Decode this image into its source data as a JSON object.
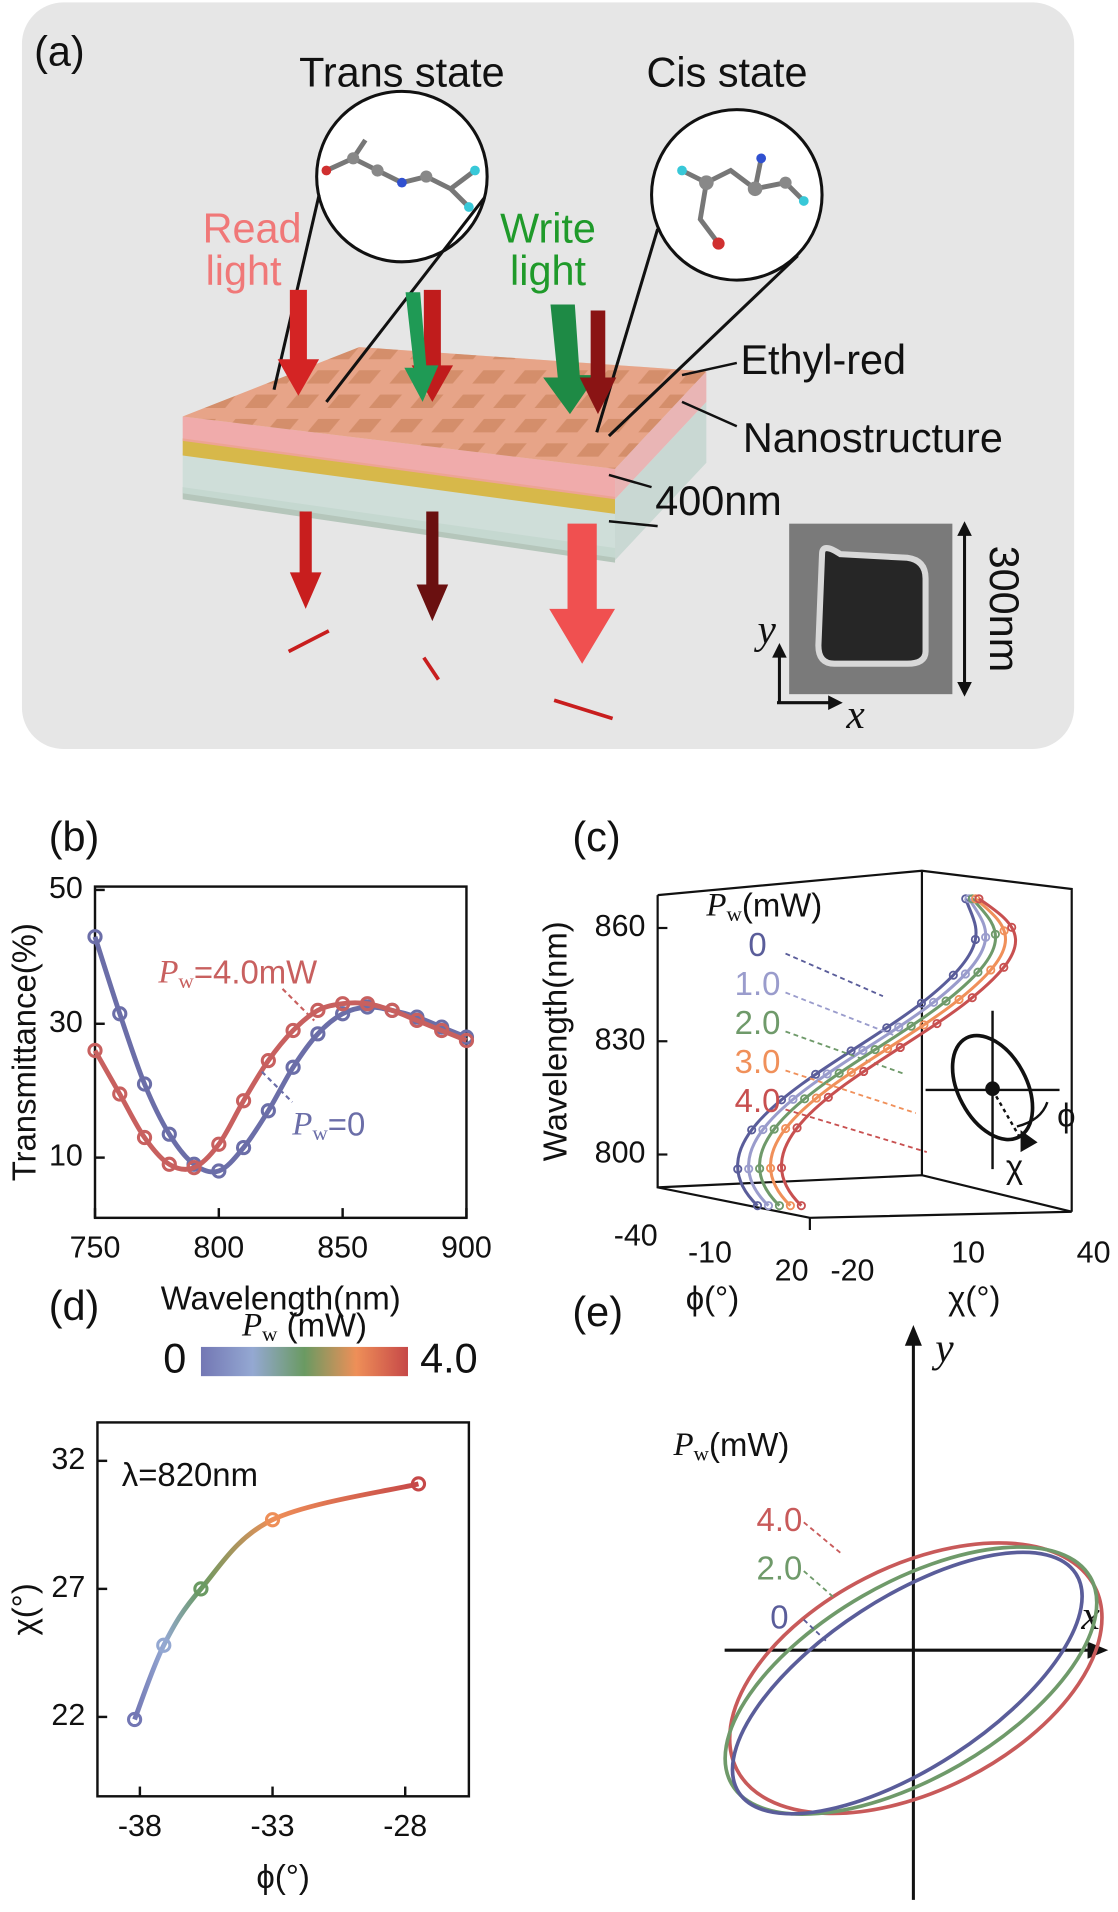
{
  "panel_a": {
    "label": "(a)",
    "trans": "Trans state",
    "cis": "Cis state",
    "read_light": [
      "Read",
      "light"
    ],
    "write_light": [
      "Write",
      "light"
    ],
    "ethyl": "Ethyl-red",
    "nano": "Nanostructure",
    "thickness": "400nm",
    "size": "300nm",
    "axis_y": "y",
    "axis_x": "x"
  },
  "chart_data": [
    {
      "type": "line",
      "label": "(b)",
      "x_label": "Wavelength(nm)",
      "y_label": "Transmittance(%)",
      "x": [
        750,
        760,
        770,
        780,
        790,
        800,
        810,
        820,
        830,
        840,
        850,
        860,
        870,
        880,
        890,
        900
      ],
      "xlim": [
        750,
        900
      ],
      "xticks": [
        750,
        800,
        850,
        900
      ],
      "ylim": [
        1,
        50.5
      ],
      "yticks": [
        10,
        30,
        50
      ],
      "series": [
        {
          "name": "Pw=0",
          "color": "#6b6ea8",
          "values": [
            43,
            31.5,
            21,
            13.5,
            9,
            8,
            11.5,
            17,
            23.5,
            28.5,
            31.5,
            32.5,
            32,
            31,
            29.5,
            28
          ]
        },
        {
          "name": "Pw=4.0mW",
          "color": "#c8605f",
          "values": [
            26,
            19.5,
            13,
            9,
            8.5,
            12,
            18.5,
            24.5,
            29,
            32,
            33,
            33,
            32,
            30.5,
            29,
            27.5
          ]
        }
      ]
    },
    {
      "type": "line",
      "label": "(d)",
      "x_label": "ϕ(°)",
      "y_label": "χ(°)",
      "annotation": "λ=820nm",
      "x": [
        -38.2,
        -37.1,
        -35.7,
        -33.0,
        -27.5
      ],
      "values": [
        21.9,
        24.8,
        27.0,
        29.7,
        31.1
      ],
      "xlim": [
        -39.6,
        -25.6
      ],
      "xticks": [
        -38,
        -33,
        -28
      ],
      "ylim": [
        18.9,
        33.5
      ],
      "yticks": [
        22,
        27,
        32
      ],
      "colormap": [
        "#7377b4",
        "#94a8d2",
        "#6a9a62",
        "#ee8f58",
        "#c64848"
      ],
      "colorbar": {
        "label": "Pw (mW)",
        "lim": [
          0,
          4
        ],
        "ticks": [
          0,
          {
            "value": 4,
            "label": "4.0"
          }
        ]
      }
    }
  ],
  "panel_c": {
    "label": "(c)",
    "z_label": "Wavelength(nm)",
    "phi_label": "ϕ(°)",
    "chi_label": "χ(°)",
    "z_ticks": [
      800,
      830,
      860
    ],
    "phi_ticks": [
      -40,
      -10,
      20
    ],
    "chi_ticks": [
      -20,
      10,
      40
    ],
    "legend_title": "Pw(mW)",
    "inset_phi": "ϕ",
    "inset_chi": "χ",
    "legend": [
      {
        "name": "0",
        "color": "#5a5d9a"
      },
      {
        "name": "1.0",
        "color": "#9a9ccc"
      },
      {
        "name": "2.0",
        "color": "#6f9a6a"
      },
      {
        "name": "3.0",
        "color": "#f0905a"
      },
      {
        "name": "4.0",
        "color": "#c85050"
      }
    ]
  },
  "panel_e": {
    "label": "(e)",
    "axis_x": "x",
    "axis_y": "y",
    "legend_title": "Pw(mW)",
    "legend": [
      {
        "name": "4.0",
        "color": "#c85a5a"
      },
      {
        "name": "2.0",
        "color": "#6f9a6a"
      },
      {
        "name": "0",
        "color": "#5a5d9a"
      }
    ]
  }
}
